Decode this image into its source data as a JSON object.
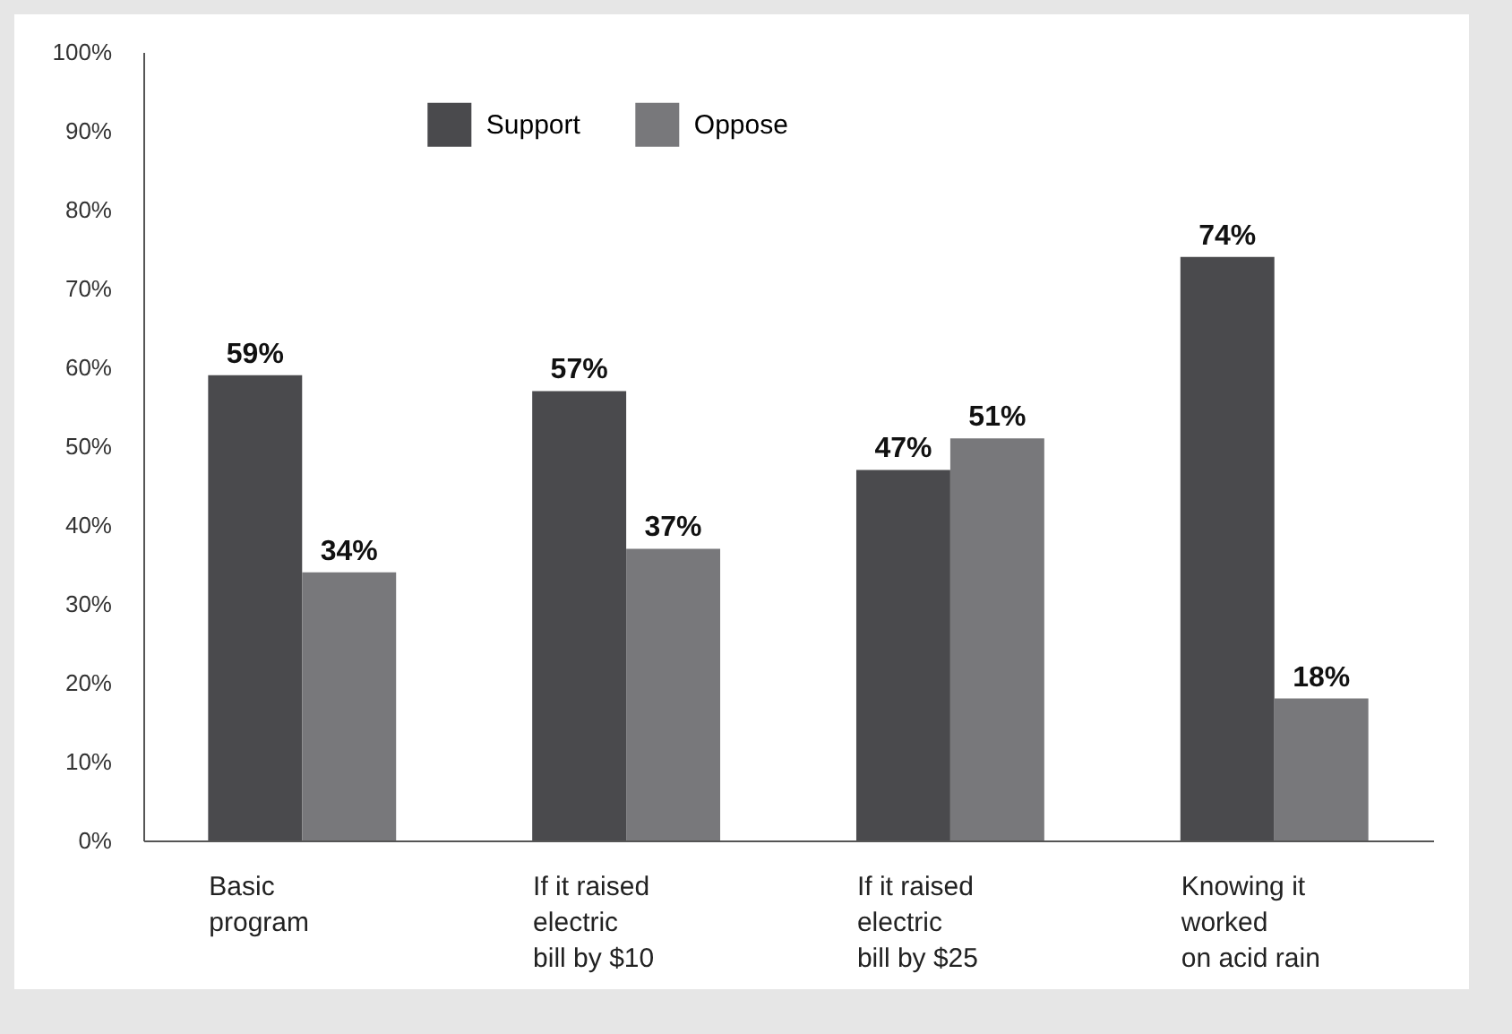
{
  "chart_data": {
    "type": "bar",
    "categories": [
      "Basic\nprogram",
      "If it raised\nelectric\nbill by $10",
      "If it raised\nelectric\nbill by $25",
      "Knowing it\nworked\non acid rain"
    ],
    "series": [
      {
        "name": "Support",
        "color": "#4a4a4d",
        "values": [
          59,
          57,
          47,
          74
        ],
        "value_labels": [
          "59%",
          "57%",
          "47%",
          "74%"
        ]
      },
      {
        "name": "Oppose",
        "color": "#78787b",
        "values": [
          34,
          37,
          51,
          18
        ],
        "value_labels": [
          "34%",
          "37%",
          "51%",
          "18%"
        ]
      }
    ],
    "ylim": [
      0,
      100
    ],
    "yticks": [
      {
        "value": 0,
        "label": "0%"
      },
      {
        "value": 10,
        "label": "10%"
      },
      {
        "value": 20,
        "label": "20%"
      },
      {
        "value": 30,
        "label": "30%"
      },
      {
        "value": 40,
        "label": "40%"
      },
      {
        "value": 50,
        "label": "50%"
      },
      {
        "value": 60,
        "label": "60%"
      },
      {
        "value": 70,
        "label": "70%"
      },
      {
        "value": 80,
        "label": "80%"
      },
      {
        "value": 90,
        "label": "90%"
      },
      {
        "value": 100,
        "label": "100%"
      }
    ],
    "grid": false,
    "legend": "top"
  }
}
